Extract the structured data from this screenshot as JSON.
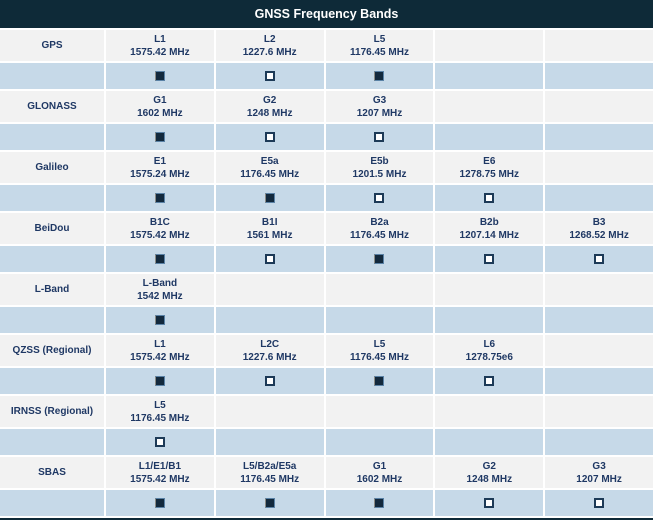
{
  "title": "GNSS Frequency Bands",
  "colors": {
    "header_bg": "#0e2a38",
    "header_text": "#ffffff",
    "band_row_bg": "#f2f2f2",
    "check_row_bg": "#c6d9e8",
    "text": "#1f3864",
    "separator": "#ffffff",
    "checkbox_fill": "#12293d",
    "checkbox_border": "#1d3a57"
  },
  "column_count": 5,
  "systems": [
    {
      "name": "GPS",
      "bands": [
        {
          "name": "L1",
          "frequency": "1575.42 MHz",
          "checked": true
        },
        {
          "name": "L2",
          "frequency": "1227.6 MHz",
          "checked": false
        },
        {
          "name": "L5",
          "frequency": "1176.45 MHz",
          "checked": true
        }
      ]
    },
    {
      "name": "GLONASS",
      "bands": [
        {
          "name": "G1",
          "frequency": "1602 MHz",
          "checked": true
        },
        {
          "name": "G2",
          "frequency": "1248 MHz",
          "checked": false
        },
        {
          "name": "G3",
          "frequency": "1207 MHz",
          "checked": false
        }
      ]
    },
    {
      "name": "Galileo",
      "bands": [
        {
          "name": "E1",
          "frequency": "1575.24 MHz",
          "checked": true
        },
        {
          "name": "E5a",
          "frequency": "1176.45 MHz",
          "checked": true
        },
        {
          "name": "E5b",
          "frequency": "1201.5 MHz",
          "checked": false
        },
        {
          "name": "E6",
          "frequency": "1278.75 MHz",
          "checked": false
        }
      ]
    },
    {
      "name": "BeiDou",
      "bands": [
        {
          "name": "B1C",
          "frequency": "1575.42 MHz",
          "checked": true
        },
        {
          "name": "B1I",
          "frequency": "1561 MHz",
          "checked": false
        },
        {
          "name": "B2a",
          "frequency": "1176.45 MHz",
          "checked": true
        },
        {
          "name": "B2b",
          "frequency": "1207.14 MHz",
          "checked": false
        },
        {
          "name": "B3",
          "frequency": "1268.52 MHz",
          "checked": false
        }
      ]
    },
    {
      "name": "L-Band",
      "bands": [
        {
          "name": "L-Band",
          "frequency": "1542 MHz",
          "checked": true
        }
      ]
    },
    {
      "name": "QZSS (Regional)",
      "bands": [
        {
          "name": "L1",
          "frequency": "1575.42 MHz",
          "checked": true
        },
        {
          "name": "L2C",
          "frequency": "1227.6 MHz",
          "checked": false
        },
        {
          "name": "L5",
          "frequency": "1176.45 MHz",
          "checked": true
        },
        {
          "name": "L6",
          "frequency": "1278.75e6",
          "checked": false
        }
      ]
    },
    {
      "name": "IRNSS (Regional)",
      "bands": [
        {
          "name": "L5",
          "frequency": "1176.45 MHz",
          "checked": false
        }
      ]
    },
    {
      "name": "SBAS",
      "bands": [
        {
          "name": "L1/E1/B1",
          "frequency": "1575.42 MHz",
          "checked": true
        },
        {
          "name": "L5/B2a/E5a",
          "frequency": "1176.45 MHz",
          "checked": true
        },
        {
          "name": "G1",
          "frequency": "1602 MHz",
          "checked": true
        },
        {
          "name": "G2",
          "frequency": "1248 MHz",
          "checked": false
        },
        {
          "name": "G3",
          "frequency": "1207 MHz",
          "checked": false
        }
      ]
    }
  ]
}
